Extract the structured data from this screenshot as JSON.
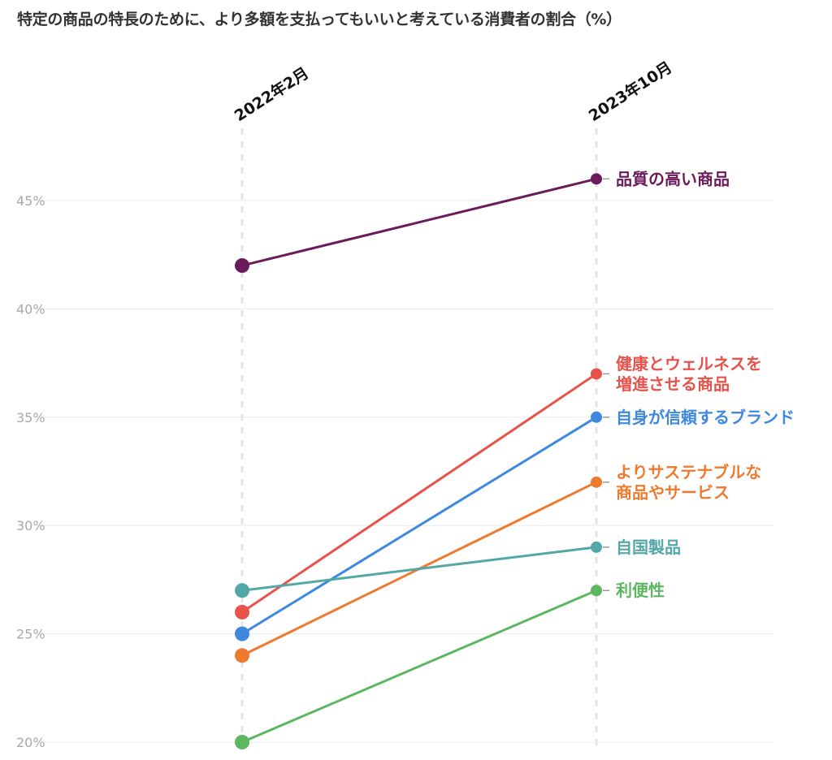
{
  "chart_data": {
    "type": "line",
    "subtype": "slope",
    "title": "特定の商品の特長のために、より多額を支払ってもいいと考えている消費者の割合（%）",
    "categories": [
      "2022年2月",
      "2023年10月"
    ],
    "ylim": [
      20,
      46
    ],
    "yticks": [
      20,
      25,
      30,
      35,
      40,
      45
    ],
    "ytick_labels": [
      "20%",
      "25%",
      "30%",
      "35%",
      "40%",
      "45%"
    ],
    "grid": true,
    "series": [
      {
        "name": "品質の高い商品",
        "label_lines": [
          "品質の高い商品"
        ],
        "values": [
          42,
          46
        ],
        "color": "#6b1a5c"
      },
      {
        "name": "健康とウェルネスを増進させる商品",
        "label_lines": [
          "健康とウェルネスを",
          "増進させる商品"
        ],
        "values": [
          26,
          37
        ],
        "color": "#e8524a"
      },
      {
        "name": "自身が信頼するブランド",
        "label_lines": [
          "自身が信頼するブランド"
        ],
        "values": [
          25,
          35
        ],
        "color": "#3f88e0"
      },
      {
        "name": "よりサステナブルな商品やサービス",
        "label_lines": [
          "よりサステナブルな",
          "商品やサービス"
        ],
        "values": [
          24,
          32
        ],
        "color": "#ef7a2e"
      },
      {
        "name": "自国製品",
        "label_lines": [
          "自国製品"
        ],
        "values": [
          27,
          29
        ],
        "color": "#52a8a6"
      },
      {
        "name": "利便性",
        "label_lines": [
          "利便性"
        ],
        "values": [
          20,
          27
        ],
        "color": "#5db660"
      }
    ]
  }
}
